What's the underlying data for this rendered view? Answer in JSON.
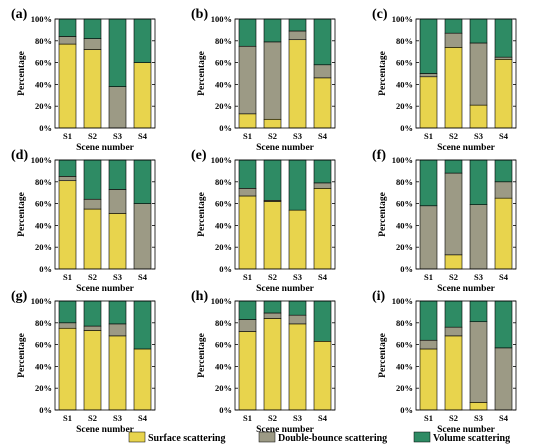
{
  "legend": {
    "items": [
      {
        "label": "Surface scattering",
        "color": "#e8d44d"
      },
      {
        "label": "Double-bounce scattering",
        "color": "#9c9a85"
      },
      {
        "label": "Volume scattering",
        "color": "#2e8b64"
      }
    ]
  },
  "chart_data": [
    {
      "type": "bar",
      "stacked": true,
      "panel": "(a)",
      "categories": [
        "S1",
        "S2",
        "S3",
        "S4"
      ],
      "xlabel": "Scene number",
      "ylabel": "Percentage",
      "ylim": [
        0,
        100
      ],
      "yticks": [
        "0%",
        "20%",
        "40%",
        "60%",
        "80%",
        "100%"
      ],
      "series": [
        {
          "name": "Surface scattering",
          "values": [
            77,
            72,
            0,
            60
          ]
        },
        {
          "name": "Double-bounce scattering",
          "values": [
            7,
            10,
            38,
            0
          ]
        },
        {
          "name": "Volume scattering",
          "values": [
            16,
            18,
            62,
            40
          ]
        }
      ]
    },
    {
      "type": "bar",
      "stacked": true,
      "panel": "(b)",
      "categories": [
        "S1",
        "S2",
        "S3",
        "S4"
      ],
      "xlabel": "Scene number",
      "ylabel": "Percentage",
      "ylim": [
        0,
        100
      ],
      "yticks": [
        "0%",
        "20%",
        "40%",
        "60%",
        "80%",
        "100%"
      ],
      "series": [
        {
          "name": "Surface scattering",
          "values": [
            13,
            8,
            81,
            46
          ]
        },
        {
          "name": "Double-bounce scattering",
          "values": [
            62,
            71,
            8,
            12
          ]
        },
        {
          "name": "Volume scattering",
          "values": [
            25,
            21,
            11,
            42
          ]
        }
      ]
    },
    {
      "type": "bar",
      "stacked": true,
      "panel": "(c)",
      "categories": [
        "S1",
        "S2",
        "S3",
        "S4"
      ],
      "xlabel": "Scene number",
      "ylabel": "Percentage",
      "ylim": [
        0,
        100
      ],
      "yticks": [
        "0%",
        "20%",
        "40%",
        "60%",
        "80%",
        "100%"
      ],
      "series": [
        {
          "name": "Surface scattering",
          "values": [
            47,
            74,
            21,
            63
          ]
        },
        {
          "name": "Double-bounce scattering",
          "values": [
            3,
            13,
            57,
            2
          ]
        },
        {
          "name": "Volume scattering",
          "values": [
            50,
            13,
            22,
            35
          ]
        }
      ]
    },
    {
      "type": "bar",
      "stacked": true,
      "panel": "(d)",
      "categories": [
        "S1",
        "S2",
        "S3",
        "S4"
      ],
      "xlabel": "Scene number",
      "ylabel": "Percentage",
      "ylim": [
        0,
        100
      ],
      "yticks": [
        "0%",
        "20%",
        "40%",
        "60%",
        "80%",
        "100%"
      ],
      "series": [
        {
          "name": "Surface scattering",
          "values": [
            81,
            55,
            51,
            0
          ]
        },
        {
          "name": "Double-bounce scattering",
          "values": [
            4,
            9,
            22,
            60
          ]
        },
        {
          "name": "Volume scattering",
          "values": [
            15,
            36,
            27,
            40
          ]
        }
      ]
    },
    {
      "type": "bar",
      "stacked": true,
      "panel": "(e)",
      "categories": [
        "S1",
        "S2",
        "S3",
        "S4"
      ],
      "xlabel": "Scene number",
      "ylabel": "Percentage",
      "ylim": [
        0,
        100
      ],
      "yticks": [
        "0%",
        "20%",
        "40%",
        "60%",
        "80%",
        "100%"
      ],
      "series": [
        {
          "name": "Surface scattering",
          "values": [
            67,
            62,
            54,
            74
          ]
        },
        {
          "name": "Double-bounce scattering",
          "values": [
            7,
            1,
            0,
            5
          ]
        },
        {
          "name": "Volume scattering",
          "values": [
            26,
            37,
            46,
            21
          ]
        }
      ]
    },
    {
      "type": "bar",
      "stacked": true,
      "panel": "(f)",
      "categories": [
        "S1",
        "S2",
        "S3",
        "S4"
      ],
      "xlabel": "Scene number",
      "ylabel": "Percentage",
      "ylim": [
        0,
        100
      ],
      "yticks": [
        "0%",
        "20%",
        "40%",
        "60%",
        "80%",
        "100%"
      ],
      "series": [
        {
          "name": "Surface scattering",
          "values": [
            0,
            13,
            0,
            65
          ]
        },
        {
          "name": "Double-bounce scattering",
          "values": [
            58,
            75,
            59,
            15
          ]
        },
        {
          "name": "Volume scattering",
          "values": [
            42,
            12,
            41,
            20
          ]
        }
      ]
    },
    {
      "type": "bar",
      "stacked": true,
      "panel": "(g)",
      "categories": [
        "S1",
        "S2",
        "S3",
        "S4"
      ],
      "xlabel": "Scene number",
      "ylabel": "Percentage",
      "ylim": [
        0,
        100
      ],
      "yticks": [
        "0%",
        "20%",
        "40%",
        "60%",
        "80%",
        "100%"
      ],
      "series": [
        {
          "name": "Surface scattering",
          "values": [
            75,
            73,
            68,
            56
          ]
        },
        {
          "name": "Double-bounce scattering",
          "values": [
            5,
            4,
            11,
            0
          ]
        },
        {
          "name": "Volume scattering",
          "values": [
            20,
            23,
            21,
            44
          ]
        }
      ]
    },
    {
      "type": "bar",
      "stacked": true,
      "panel": "(h)",
      "categories": [
        "S1",
        "S2",
        "S3",
        "S4"
      ],
      "xlabel": "Scene number",
      "ylabel": "Percentage",
      "ylim": [
        0,
        100
      ],
      "yticks": [
        "0%",
        "20%",
        "40%",
        "60%",
        "80%",
        "100%"
      ],
      "series": [
        {
          "name": "Surface scattering",
          "values": [
            72,
            84,
            79,
            63
          ]
        },
        {
          "name": "Double-bounce scattering",
          "values": [
            11,
            5,
            8,
            0
          ]
        },
        {
          "name": "Volume scattering",
          "values": [
            17,
            11,
            13,
            37
          ]
        }
      ]
    },
    {
      "type": "bar",
      "stacked": true,
      "panel": "(i)",
      "categories": [
        "S1",
        "S2",
        "S3",
        "S4"
      ],
      "xlabel": "Scene number",
      "ylabel": "Percentage",
      "ylim": [
        0,
        100
      ],
      "yticks": [
        "0%",
        "20%",
        "40%",
        "60%",
        "80%",
        "100%"
      ],
      "series": [
        {
          "name": "Surface scattering",
          "values": [
            56,
            68,
            7,
            0
          ]
        },
        {
          "name": "Double-bounce scattering",
          "values": [
            8,
            8,
            74,
            57
          ]
        },
        {
          "name": "Volume scattering",
          "values": [
            36,
            24,
            19,
            43
          ]
        }
      ]
    }
  ]
}
